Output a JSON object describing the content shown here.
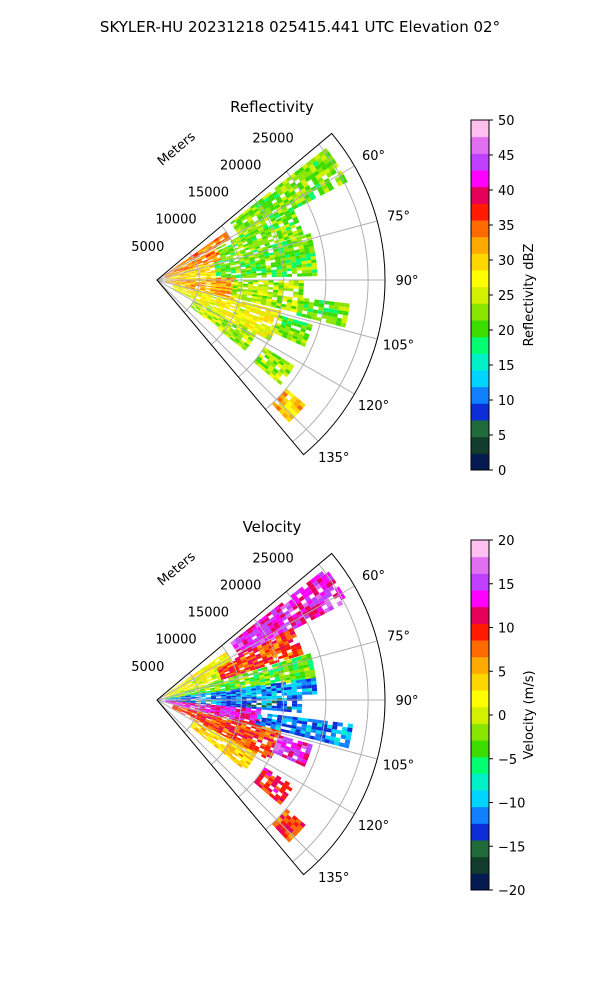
{
  "suptitle": "SKYLER-HU  20231218  025415.441 UTC Elevation 02°",
  "colors": {
    "grid": "#b0b0b0",
    "reflectivity_colormap": [
      "#061a52",
      "#123d2c",
      "#1f6b3a",
      "#0b2ed6",
      "#1080ff",
      "#00d4ff",
      "#00f0c8",
      "#00ff70",
      "#3cdc00",
      "#8ae600",
      "#d2f000",
      "#ffff00",
      "#ffd700",
      "#ffaa00",
      "#ff6a00",
      "#ff1a00",
      "#e6005a",
      "#ff00ff",
      "#c040ff",
      "#e070f0",
      "#ffc0f0"
    ],
    "velocity_colormap": [
      "#061a52",
      "#123d2c",
      "#1f6b3a",
      "#0b2ed6",
      "#1080ff",
      "#00d4ff",
      "#00f0c8",
      "#00ff70",
      "#3cdc00",
      "#8ae600",
      "#d2f000",
      "#ffff00",
      "#ffd700",
      "#ffaa00",
      "#ff6a00",
      "#ff1a00",
      "#e6005a",
      "#ff00ff",
      "#c040ff",
      "#e070f0",
      "#ffc0f0"
    ]
  },
  "chart_data": [
    {
      "type": "heatmap",
      "projection": "polar-sector",
      "title": "Reflectivity",
      "radial_label": "Meters",
      "radial_ticks": [
        5000,
        10000,
        15000,
        20000,
        25000
      ],
      "radial_tick_labels": [
        "5000",
        "10000",
        "15000",
        "20000",
        "25000"
      ],
      "rlim": [
        0,
        27000
      ],
      "azimuth_range_deg": [
        50,
        140
      ],
      "angle_ticks_deg": [
        60,
        75,
        90,
        105,
        120,
        135
      ],
      "angle_tick_labels": [
        "60°",
        "75°",
        "90°",
        "105°",
        "120°",
        "135°"
      ],
      "grid": true,
      "colorbar": {
        "label": "Reflectivity dBZ",
        "range": [
          0,
          50
        ],
        "ticks": [
          0,
          5,
          10,
          15,
          20,
          25,
          30,
          35,
          40,
          45,
          50
        ],
        "tick_labels": [
          "0",
          "5",
          "10",
          "15",
          "20",
          "25",
          "30",
          "35",
          "40",
          "45",
          "50"
        ]
      },
      "echo_regions": [
        {
          "az": [
            52,
            62
          ],
          "r": [
            11000,
            25000
          ],
          "value": 22
        },
        {
          "az": [
            55,
            61
          ],
          "r": [
            1000,
            10000
          ],
          "value": 34
        },
        {
          "az": [
            62,
            72
          ],
          "r": [
            1000,
            8000
          ],
          "value": 33
        },
        {
          "az": [
            62,
            72
          ],
          "r": [
            8000,
            18000
          ],
          "value": 22
        },
        {
          "az": [
            73,
            88
          ],
          "r": [
            1000,
            7000
          ],
          "value": 30
        },
        {
          "az": [
            73,
            88
          ],
          "r": [
            7000,
            19000
          ],
          "value": 21
        },
        {
          "az": [
            88,
            104
          ],
          "r": [
            1000,
            9000
          ],
          "value": 32
        },
        {
          "az": [
            90,
            103
          ],
          "r": [
            9000,
            17000
          ],
          "value": 24
        },
        {
          "az": [
            97,
            104
          ],
          "r": [
            17000,
            23000
          ],
          "value": 21
        },
        {
          "az": [
            104,
            118
          ],
          "r": [
            2000,
            15000
          ],
          "value": 27
        },
        {
          "az": [
            106,
            114
          ],
          "r": [
            15000,
            19000
          ],
          "value": 22
        },
        {
          "az": [
            118,
            128
          ],
          "r": [
            5000,
            13000
          ],
          "value": 24
        },
        {
          "az": [
            122,
            130
          ],
          "r": [
            15000,
            19000
          ],
          "value": 23
        },
        {
          "az": [
            130,
            136
          ],
          "r": [
            20000,
            23000
          ],
          "value": 31
        }
      ]
    },
    {
      "type": "heatmap",
      "projection": "polar-sector",
      "title": "Velocity",
      "radial_label": "Meters",
      "radial_ticks": [
        5000,
        10000,
        15000,
        20000,
        25000
      ],
      "radial_tick_labels": [
        "5000",
        "10000",
        "15000",
        "20000",
        "25000"
      ],
      "rlim": [
        0,
        27000
      ],
      "azimuth_range_deg": [
        50,
        140
      ],
      "angle_ticks_deg": [
        60,
        75,
        90,
        105,
        120,
        135
      ],
      "angle_tick_labels": [
        "60°",
        "75°",
        "90°",
        "105°",
        "120°",
        "135°"
      ],
      "grid": true,
      "colorbar": {
        "label": "Velocity (m/s)",
        "range": [
          -20,
          20
        ],
        "ticks": [
          -20,
          -15,
          -10,
          -5,
          0,
          5,
          10,
          15,
          20
        ],
        "tick_labels": [
          "−20",
          "−15",
          "−10",
          "−5",
          "0",
          "5",
          "10",
          "15",
          "20"
        ]
      },
      "echo_regions": [
        {
          "az": [
            52,
            62
          ],
          "r": [
            11000,
            25000
          ],
          "value": 14
        },
        {
          "az": [
            55,
            62
          ],
          "r": [
            1000,
            10000
          ],
          "value": 2
        },
        {
          "az": [
            62,
            72
          ],
          "r": [
            1000,
            8000
          ],
          "value": 1
        },
        {
          "az": [
            62,
            72
          ],
          "r": [
            8000,
            18000
          ],
          "value": 9
        },
        {
          "az": [
            73,
            82
          ],
          "r": [
            1000,
            19000
          ],
          "value": -3
        },
        {
          "az": [
            82,
            88
          ],
          "r": [
            1000,
            19000
          ],
          "value": -11
        },
        {
          "az": [
            88,
            95
          ],
          "r": [
            1000,
            17000
          ],
          "value": -12
        },
        {
          "az": [
            95,
            104
          ],
          "r": [
            1000,
            12000
          ],
          "value": 13
        },
        {
          "az": [
            97,
            104
          ],
          "r": [
            12000,
            23000
          ],
          "value": -11
        },
        {
          "az": [
            104,
            118
          ],
          "r": [
            2000,
            15000
          ],
          "value": 9
        },
        {
          "az": [
            106,
            114
          ],
          "r": [
            15000,
            19000
          ],
          "value": 14
        },
        {
          "az": [
            118,
            128
          ],
          "r": [
            5000,
            13000
          ],
          "value": 4
        },
        {
          "az": [
            122,
            130
          ],
          "r": [
            15000,
            19000
          ],
          "value": 10
        },
        {
          "az": [
            130,
            136
          ],
          "r": [
            20000,
            23000
          ],
          "value": 9
        }
      ]
    }
  ]
}
